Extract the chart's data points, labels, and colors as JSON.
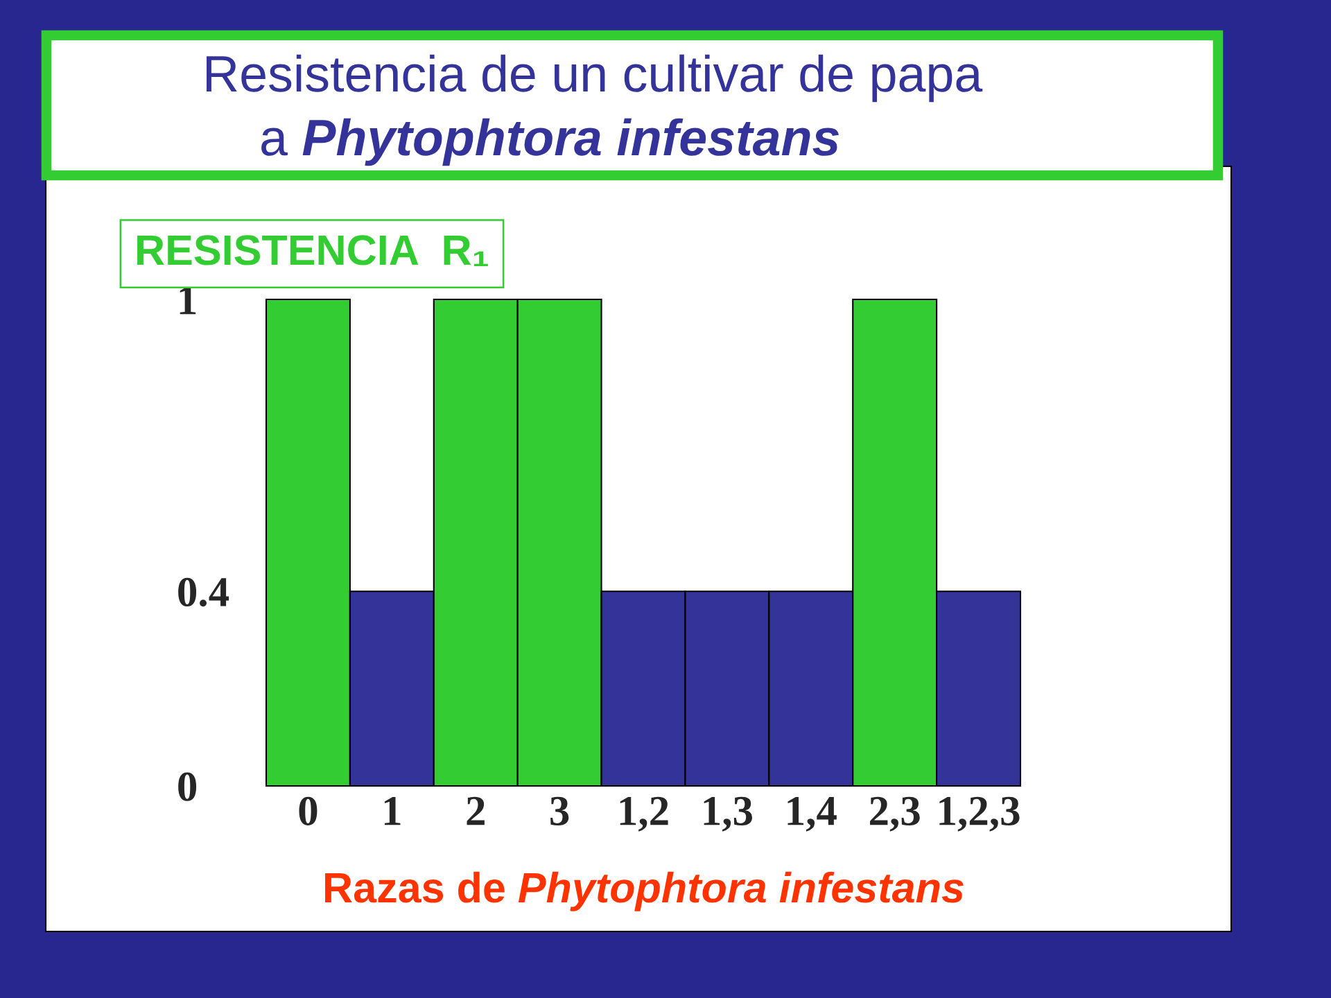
{
  "chart_data": {
    "type": "bar",
    "title": "Resistencia de un cultivar de papa\na Phytophtora infestans",
    "subtitle": "RESISTENCIA  R₁",
    "xlabel": "Razas de Phytophtora infestans",
    "categories": [
      "0",
      "1",
      "2",
      "3",
      "1,2",
      "1,3",
      "1,4",
      "2,3",
      "1,2,3"
    ],
    "values": [
      1,
      0.4,
      1,
      1,
      0.4,
      0.4,
      0.4,
      1,
      0.4
    ],
    "colors": [
      "#33cc33",
      "#333399",
      "#33cc33",
      "#33cc33",
      "#333399",
      "#333399",
      "#333399",
      "#33cc33",
      "#333399"
    ],
    "ylim": [
      0,
      1
    ],
    "yticks": [
      0,
      0.4,
      1
    ]
  }
}
